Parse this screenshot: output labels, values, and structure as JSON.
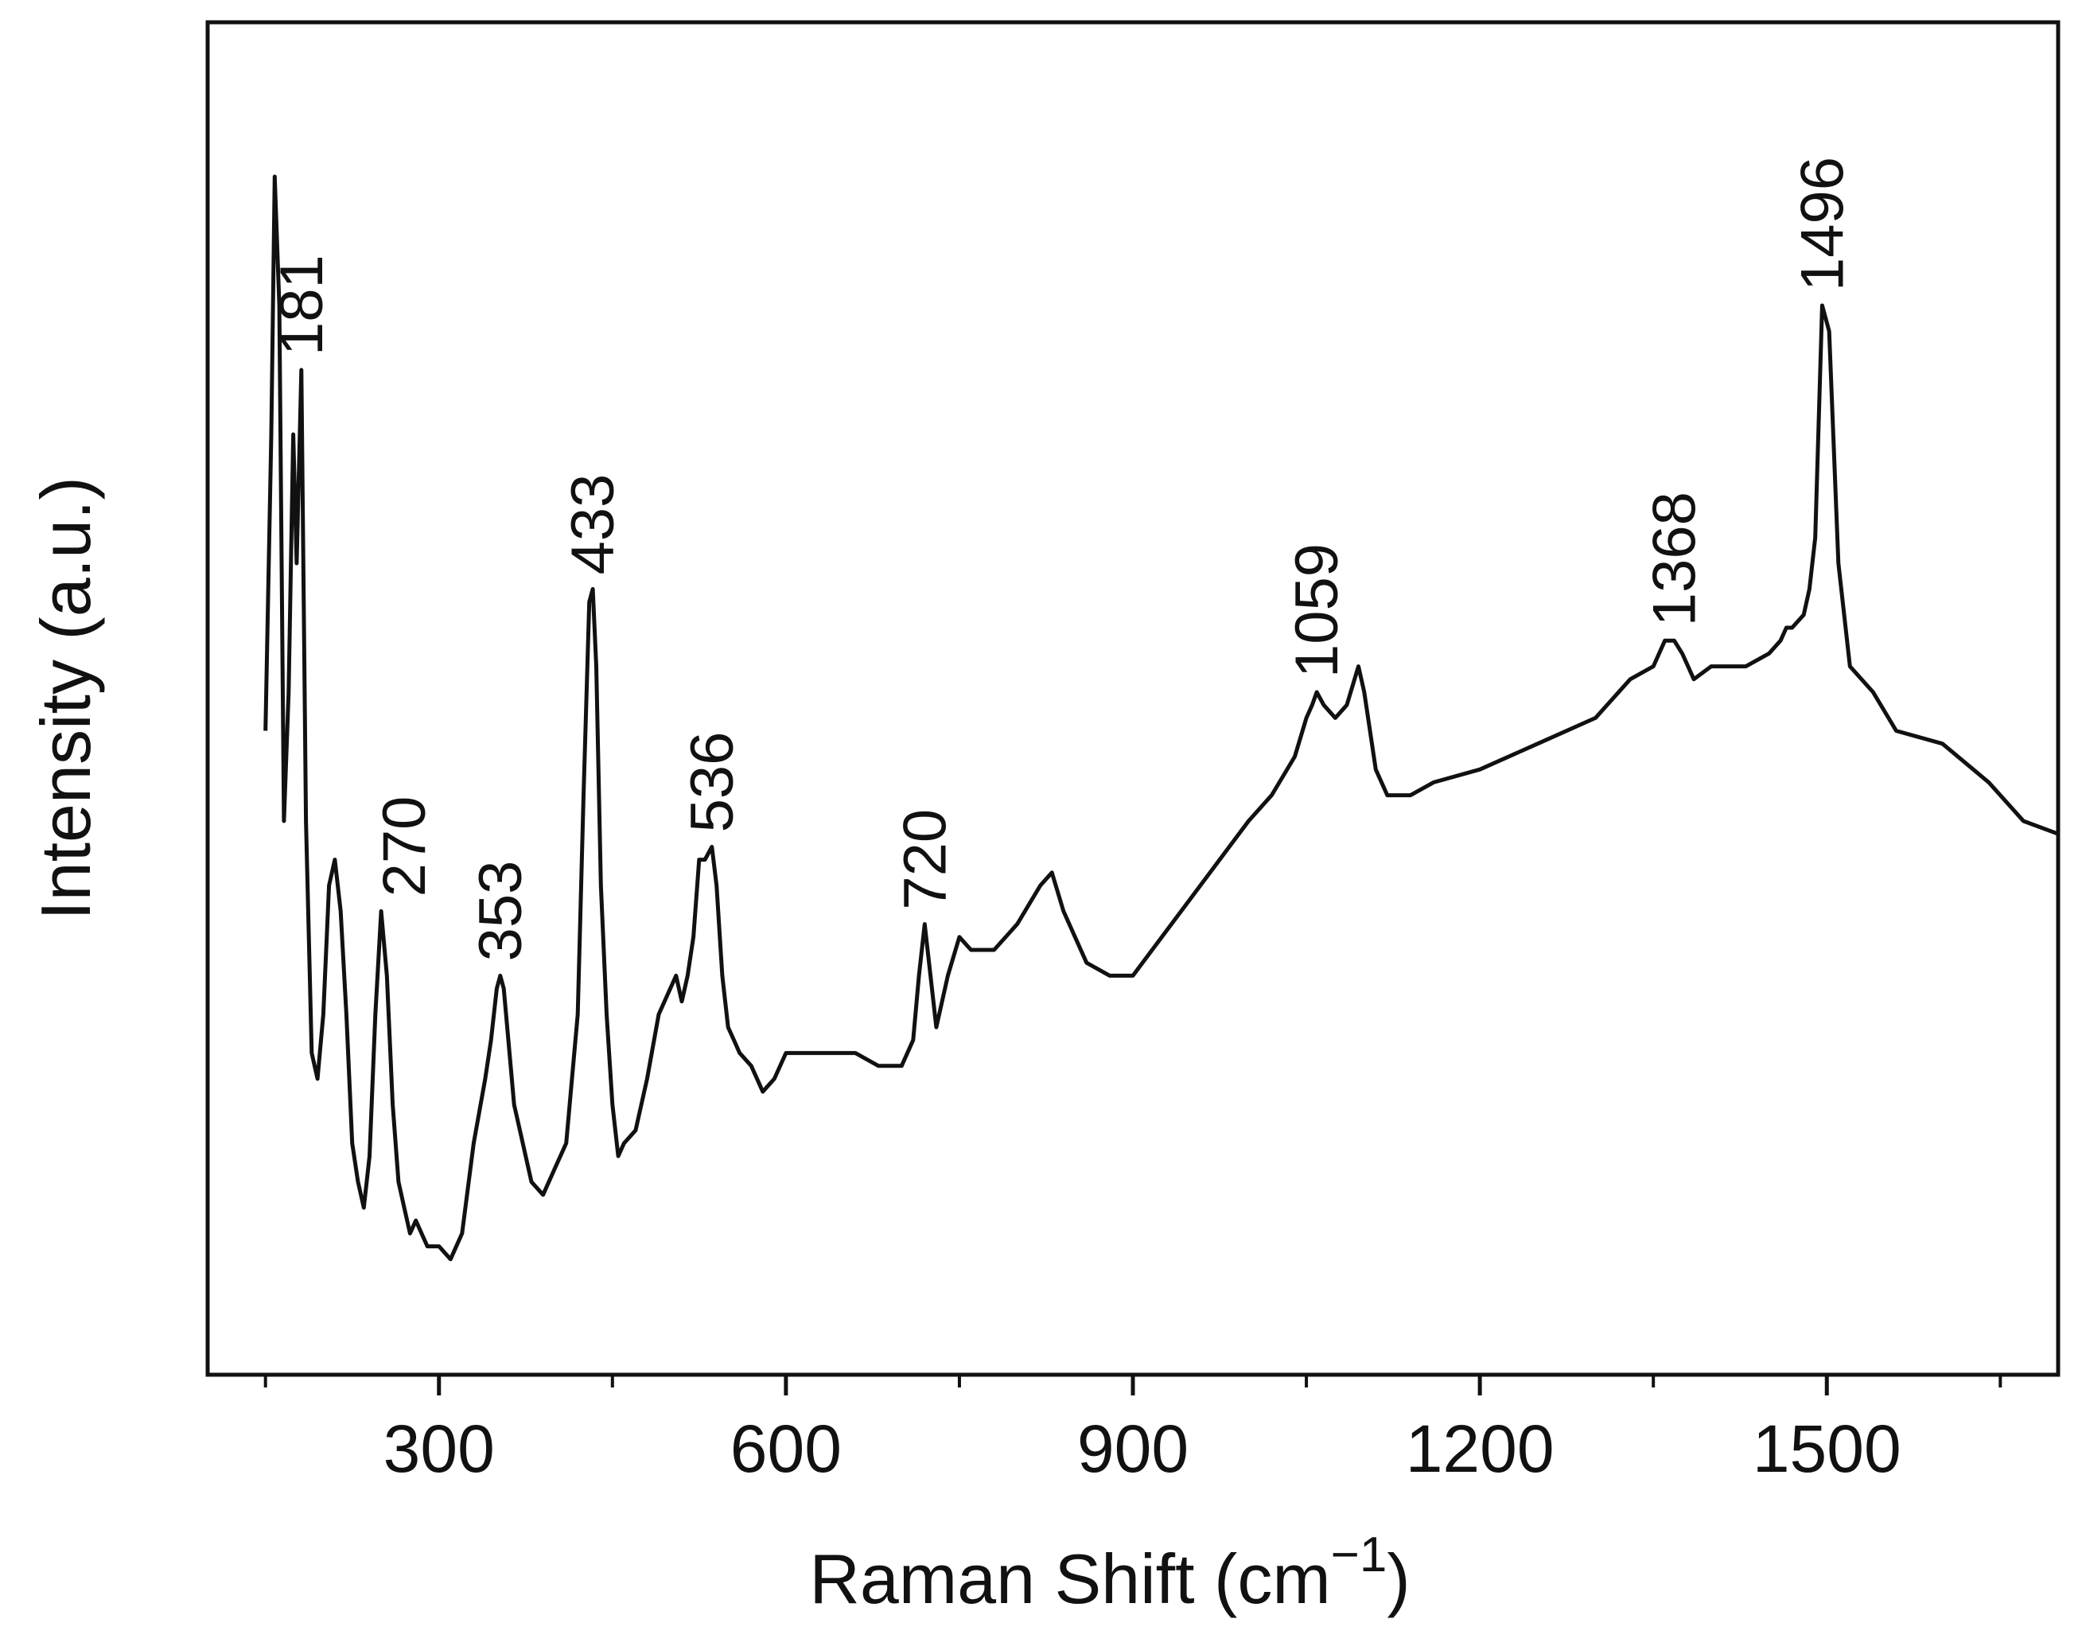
{
  "chart_data": {
    "type": "line",
    "xlabel": "Raman Shift (cm",
    "xlabel_superscript": "−1",
    "xlabel_close": ")",
    "ylabel": "Intensity (a.u.)",
    "xlim": [
      100,
      1700
    ],
    "ylim": [
      0,
      100
    ],
    "y_ticks_shown": false,
    "grid": false,
    "legend": "none",
    "x_ticks_major": [
      300,
      600,
      900,
      1200,
      1500
    ],
    "x_tick_labels": [
      "300",
      "600",
      "900",
      "1200",
      "1500"
    ],
    "x_ticks_minor": [
      150,
      450,
      750,
      1050,
      1350,
      1650
    ],
    "line_color": "#111111",
    "series": [
      {
        "x": [
          150,
          155,
          158,
          162,
          166,
          170,
          174,
          177,
          181,
          185,
          190,
          195,
          200,
          205,
          210,
          215,
          220,
          225,
          230,
          235,
          240,
          245,
          250,
          255,
          260,
          265,
          270,
          275,
          280,
          285,
          290,
          300,
          310,
          320,
          330,
          340,
          345,
          350,
          353,
          356,
          360,
          365,
          370,
          380,
          390,
          400,
          410,
          420,
          425,
          430,
          433,
          436,
          440,
          445,
          450,
          455,
          460,
          470,
          480,
          490,
          500,
          505,
          510,
          515,
          520,
          525,
          530,
          536,
          540,
          545,
          550,
          555,
          560,
          570,
          580,
          590,
          600,
          620,
          640,
          660,
          680,
          700,
          710,
          715,
          720,
          725,
          730,
          740,
          750,
          760,
          780,
          800,
          820,
          830,
          840,
          860,
          880,
          900,
          950,
          1000,
          1020,
          1040,
          1050,
          1055,
          1059,
          1065,
          1075,
          1085,
          1095,
          1100,
          1110,
          1120,
          1140,
          1160,
          1200,
          1250,
          1300,
          1330,
          1350,
          1360,
          1368,
          1375,
          1385,
          1400,
          1430,
          1450,
          1460,
          1465,
          1470,
          1480,
          1485,
          1490,
          1496,
          1502,
          1510,
          1520,
          1540,
          1560,
          1600,
          1640,
          1670,
          1700
        ],
        "y": [
          47,
          70,
          90,
          80,
          40,
          50,
          70,
          60,
          75,
          40,
          22,
          20,
          25,
          35,
          37,
          33,
          25,
          15,
          12,
          10,
          14,
          25,
          33,
          28,
          18,
          12,
          10,
          8,
          9,
          8,
          7,
          7,
          6,
          8,
          15,
          20,
          23,
          27,
          28,
          27,
          23,
          18,
          16,
          12,
          11,
          13,
          15,
          25,
          42,
          57,
          58,
          52,
          35,
          25,
          18,
          14,
          15,
          16,
          20,
          25,
          27,
          28,
          26,
          28,
          31,
          37,
          37,
          38,
          35,
          28,
          24,
          23,
          22,
          21,
          19,
          20,
          22,
          22,
          22,
          22,
          21,
          21,
          23,
          28,
          32,
          28,
          24,
          28,
          31,
          30,
          30,
          32,
          35,
          36,
          33,
          29,
          28,
          28,
          34,
          40,
          42,
          45,
          48,
          49,
          50,
          49,
          48,
          49,
          52,
          50,
          44,
          42,
          42,
          43,
          44,
          46,
          48,
          51,
          52,
          54,
          54,
          53,
          51,
          52,
          52,
          53,
          54,
          55,
          55,
          56,
          58,
          62,
          80,
          78,
          60,
          52,
          50,
          47,
          46,
          43,
          40,
          39
        ]
      }
    ],
    "annotations": [
      {
        "text": "181",
        "x": 181,
        "y": 75
      },
      {
        "text": "270",
        "x": 270,
        "y": 33
      },
      {
        "text": "353",
        "x": 353,
        "y": 28
      },
      {
        "text": "433",
        "x": 433,
        "y": 58
      },
      {
        "text": "536",
        "x": 536,
        "y": 38
      },
      {
        "text": "720",
        "x": 720,
        "y": 32
      },
      {
        "text": "1059",
        "x": 1059,
        "y": 50
      },
      {
        "text": "1368",
        "x": 1368,
        "y": 54
      },
      {
        "text": "1496",
        "x": 1496,
        "y": 80
      }
    ]
  }
}
